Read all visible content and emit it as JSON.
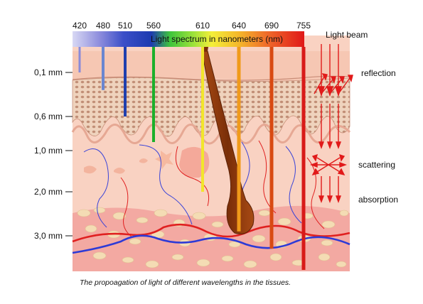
{
  "spectrum": {
    "title": "Light spectrum in nanometers (nm)",
    "wavelengths": [
      {
        "label": "420",
        "color": "#8a8ad8",
        "depth_mm": 0.1
      },
      {
        "label": "480",
        "color": "#6a86d0",
        "depth_mm": 0.3
      },
      {
        "label": "510",
        "color": "#1f3fae",
        "depth_mm": 0.6
      },
      {
        "label": "560",
        "color": "#1cb02a",
        "depth_mm": 0.9
      },
      {
        "label": "610",
        "color": "#f2e52c",
        "depth_mm": 2.0
      },
      {
        "label": "640",
        "color": "#f09a1a",
        "depth_mm": 2.9
      },
      {
        "label": "690",
        "color": "#d84a12",
        "depth_mm": 3.3
      },
      {
        "label": "755",
        "color": "#d81a18",
        "depth_mm": 3.8
      }
    ]
  },
  "depth_scale": [
    "0,1 mm",
    "0,6 mm",
    "1,0 mm",
    "2,0 mm",
    "3,0 mm"
  ],
  "annotations": {
    "light_beam": "Light beam",
    "reflection": "reflection",
    "scattering": "scattering",
    "absorption": "absorption"
  },
  "caption": "The propoagation of light of different wavelengths in the tissues.",
  "colors": {
    "skin_top": "#f8cbb8",
    "epidermis": "#e7b9a0",
    "dermis": "#f7c6b6",
    "hypodermis": "#f4a8a0",
    "hair": "#8b3a10",
    "arrow": "#e11a1a",
    "vein": "#2d3ad6",
    "artery": "#e02020"
  }
}
